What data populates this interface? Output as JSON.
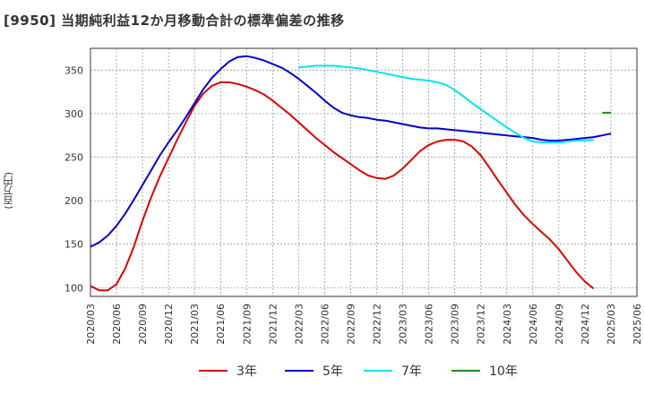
{
  "title": "[9950]  当期純利益12か月移動合計の標準偏差の推移",
  "y_unit": "(百万円)",
  "chart_data": {
    "type": "line",
    "ylim": [
      90,
      375
    ],
    "y_ticks": [
      100,
      150,
      200,
      250,
      300,
      350
    ],
    "x_ticks": [
      "2020/03",
      "2020/06",
      "2020/09",
      "2020/12",
      "2021/03",
      "2021/06",
      "2021/09",
      "2021/12",
      "2022/03",
      "2022/06",
      "2022/09",
      "2022/12",
      "2023/03",
      "2023/06",
      "2023/09",
      "2023/12",
      "2024/03",
      "2024/06",
      "2024/09",
      "2024/12",
      "2025/03",
      "2025/06"
    ],
    "grid": true,
    "legend_position": "bottom",
    "series": [
      {
        "name": "3年",
        "color": "#dd0000",
        "x_start_month": 0,
        "values": [
          102,
          97,
          97,
          104,
          122,
          147,
          177,
          204,
          228,
          249,
          270,
          290,
          309,
          323,
          332,
          336,
          336,
          334,
          331,
          327,
          322,
          315,
          307,
          299,
          290,
          281,
          272,
          264,
          256,
          249,
          242,
          235,
          229,
          226,
          225,
          229,
          237,
          247,
          257,
          264,
          268,
          270,
          270,
          268,
          262,
          252,
          238,
          223,
          209,
          195,
          183,
          173,
          164,
          155,
          144,
          131,
          118,
          107,
          99
        ]
      },
      {
        "name": "5年",
        "color": "#0000cc",
        "x_start_month": 0,
        "values": [
          147,
          152,
          160,
          171,
          185,
          201,
          218,
          235,
          252,
          267,
          281,
          296,
          312,
          328,
          341,
          351,
          360,
          365,
          366,
          364,
          361,
          357,
          353,
          347,
          340,
          332,
          324,
          315,
          307,
          301,
          298,
          296,
          295,
          293,
          292,
          290,
          288,
          286,
          284,
          283,
          283,
          282,
          281,
          280,
          279,
          278,
          277,
          276,
          275,
          274,
          273,
          272,
          270,
          269,
          269,
          270,
          271,
          272,
          273,
          275,
          277
        ]
      },
      {
        "name": "7年",
        "color": "#00e5ee",
        "x_start_month": 24,
        "values": [
          353,
          354,
          355,
          355,
          355,
          354,
          353,
          352,
          350,
          348,
          346,
          344,
          342,
          340,
          339,
          338,
          336,
          333,
          327,
          320,
          312,
          305,
          298,
          291,
          284,
          278,
          272,
          268,
          267,
          267,
          267,
          268,
          269,
          269,
          270
        ]
      },
      {
        "name": "10年",
        "color": "#228b22",
        "x_start_month": 59,
        "values": [
          301,
          301
        ]
      }
    ]
  }
}
